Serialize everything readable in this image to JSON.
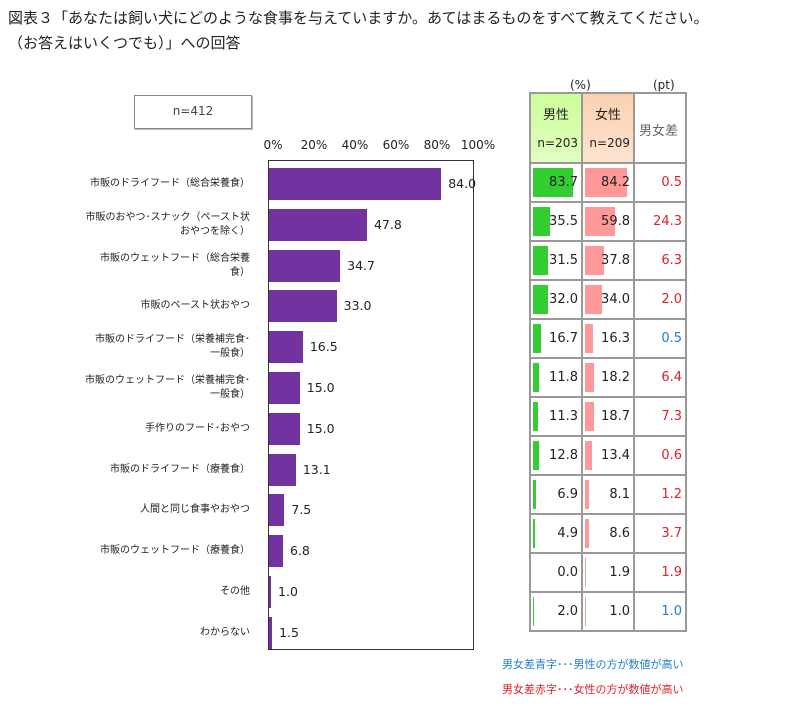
{
  "title": "図表３「あなたは飼い犬にどのような食事を与えていますか。あてはまるものをすべて教えてください。\n（お答えはいくつでも）」への回答",
  "n_label": "n=412",
  "chart_data": {
    "type": "bar",
    "orientation": "horizontal",
    "xlim": [
      0,
      100
    ],
    "tick_labels": [
      "0%",
      "20%",
      "40%",
      "60%",
      "80%",
      "100%"
    ],
    "categories": [
      "市販のドライフード（総合栄養食）",
      "市販のおやつ･スナック（ペースト状おやつを除く）",
      "市販のウェットフード（総合栄養食）",
      "市販のペースト状おやつ",
      "市販のドライフード（栄養補完食･一般食）",
      "市販のウェットフード（栄養補完食･一般食）",
      "手作りのフード･おやつ",
      "市販のドライフード（療養食）",
      "人間と同じ食事やおやつ",
      "市販のウェットフード（療養食）",
      "その他",
      "わからない"
    ],
    "category_lines": [
      [
        "市販のドライフード（総合栄養食）"
      ],
      [
        "市販のおやつ･スナック（ペースト状",
        "おやつを除く）"
      ],
      [
        "市販のウェットフード（総合栄養",
        "食）"
      ],
      [
        "市販のペースト状おやつ"
      ],
      [
        "市販のドライフード（栄養補完食･",
        "一般食）"
      ],
      [
        "市販のウェットフード（栄養補完食･",
        "一般食）"
      ],
      [
        "手作りのフード･おやつ"
      ],
      [
        "市販のドライフード（療養食）"
      ],
      [
        "人間と同じ食事やおやつ"
      ],
      [
        "市販のウェットフード（療養食）"
      ],
      [
        "その他"
      ],
      [
        "わからない"
      ]
    ],
    "values": [
      84.0,
      47.8,
      34.7,
      33.0,
      16.5,
      15.0,
      15.0,
      13.1,
      7.5,
      6.8,
      1.0,
      1.5
    ],
    "bar_color": "#7232a0"
  },
  "table": {
    "unit_pct": "(%)",
    "unit_pt": "(pt)",
    "male": {
      "label": "男性",
      "n": "n=203",
      "color": "#33cc33",
      "header_color": "#ccff99"
    },
    "female": {
      "label": "女性",
      "n": "n=209",
      "color": "#ff9999",
      "header_color": "#fbd4b4"
    },
    "diff_label": "男女差",
    "rows": [
      {
        "male": "83.7",
        "female": "84.2",
        "diff": "0.5",
        "higher": "female"
      },
      {
        "male": "35.5",
        "female": "59.8",
        "diff": "24.3",
        "higher": "female"
      },
      {
        "male": "31.5",
        "female": "37.8",
        "diff": "6.3",
        "higher": "female"
      },
      {
        "male": "32.0",
        "female": "34.0",
        "diff": "2.0",
        "higher": "female"
      },
      {
        "male": "16.7",
        "female": "16.3",
        "diff": "0.5",
        "higher": "male"
      },
      {
        "male": "11.8",
        "female": "18.2",
        "diff": "6.4",
        "higher": "female"
      },
      {
        "male": "11.3",
        "female": "18.7",
        "diff": "7.3",
        "higher": "female"
      },
      {
        "male": "12.8",
        "female": "13.4",
        "diff": "0.6",
        "higher": "female"
      },
      {
        "male": "6.9",
        "female": "8.1",
        "diff": "1.2",
        "higher": "female"
      },
      {
        "male": "4.9",
        "female": "8.6",
        "diff": "3.7",
        "higher": "female"
      },
      {
        "male": "0.0",
        "female": "1.9",
        "diff": "1.9",
        "higher": "female"
      },
      {
        "male": "2.0",
        "female": "1.0",
        "diff": "1.0",
        "higher": "male"
      }
    ],
    "blue": "#1f7fd0",
    "red": "#e0202a"
  },
  "notes": {
    "blue_note": "男女差青字･･･男性の方が数値が高い",
    "red_note": "男女差赤字･･･女性の方が数値が高い"
  }
}
